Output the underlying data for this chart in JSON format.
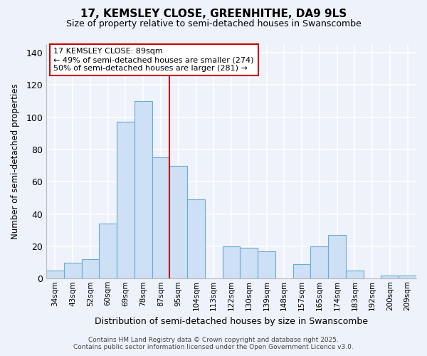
{
  "title": "17, KEMSLEY CLOSE, GREENHITHE, DA9 9LS",
  "subtitle": "Size of property relative to semi-detached houses in Swanscombe",
  "xlabel": "Distribution of semi-detached houses by size in Swanscombe",
  "ylabel": "Number of semi-detached properties",
  "categories": [
    "34sqm",
    "43sqm",
    "52sqm",
    "60sqm",
    "69sqm",
    "78sqm",
    "87sqm",
    "95sqm",
    "104sqm",
    "113sqm",
    "122sqm",
    "130sqm",
    "139sqm",
    "148sqm",
    "157sqm",
    "165sqm",
    "174sqm",
    "183sqm",
    "192sqm",
    "200sqm",
    "209sqm"
  ],
  "values": [
    5,
    10,
    12,
    34,
    97,
    110,
    75,
    70,
    49,
    0,
    20,
    19,
    17,
    0,
    9,
    20,
    27,
    5,
    0,
    2,
    2
  ],
  "bar_color": "#cde0f5",
  "bar_edge_color": "#6aaad4",
  "highlight_bar_index": 6,
  "highlight_color": "#cc0000",
  "annotation_title": "17 KEMSLEY CLOSE: 89sqm",
  "annotation_line1": "← 49% of semi-detached houses are smaller (274)",
  "annotation_line2": "50% of semi-detached houses are larger (281) →",
  "annotation_box_color": "#ffffff",
  "annotation_box_edge": "#cc0000",
  "ylim": [
    0,
    145
  ],
  "yticks": [
    0,
    20,
    40,
    60,
    80,
    100,
    120,
    140
  ],
  "background_color": "#eef2fb",
  "grid_color": "#ffffff",
  "footer_line1": "Contains HM Land Registry data © Crown copyright and database right 2025.",
  "footer_line2": "Contains public sector information licensed under the Open Government Licence v3.0."
}
